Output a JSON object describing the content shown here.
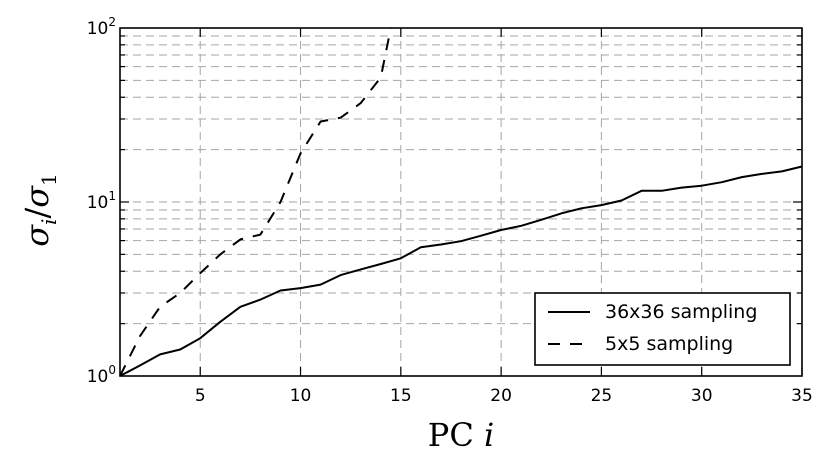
{
  "chart_data": {
    "type": "line",
    "xlabel": "PC i",
    "ylabel": "σi/σ1",
    "xlim": [
      1,
      35
    ],
    "ylim": [
      1,
      100
    ],
    "y_scale": "log",
    "grid": true,
    "legend_position": "bottom-right",
    "x_ticks": [
      5,
      10,
      15,
      20,
      25,
      30,
      35
    ],
    "y_ticks": [
      {
        "value": 1,
        "base": "10",
        "exp": "0"
      },
      {
        "value": 10,
        "base": "10",
        "exp": "1"
      },
      {
        "value": 100,
        "base": "10",
        "exp": "2"
      }
    ],
    "series": [
      {
        "name": "36x36 sampling",
        "style": "solid",
        "color": "#000000",
        "x": [
          1,
          2,
          3,
          4,
          5,
          6,
          7,
          8,
          9,
          10,
          11,
          12,
          13,
          14,
          15,
          16,
          17,
          18,
          19,
          20,
          21,
          22,
          23,
          24,
          25,
          26,
          27,
          28,
          29,
          30,
          31,
          32,
          33,
          34,
          35
        ],
        "y": [
          1.0,
          1.15,
          1.33,
          1.42,
          1.65,
          2.05,
          2.5,
          2.75,
          3.1,
          3.2,
          3.35,
          3.8,
          4.1,
          4.4,
          4.75,
          5.5,
          5.7,
          5.95,
          6.4,
          6.9,
          7.3,
          7.9,
          8.6,
          9.2,
          9.6,
          10.2,
          11.6,
          11.6,
          12.1,
          12.4,
          13.0,
          13.9,
          14.5,
          15.0,
          16.0
        ]
      },
      {
        "name": "5x5 sampling",
        "style": "dashed",
        "color": "#000000",
        "x": [
          1,
          2,
          3,
          4,
          5,
          6,
          7,
          8,
          9,
          10,
          11,
          12,
          13,
          14,
          14.5
        ],
        "y": [
          1.0,
          1.7,
          2.5,
          3.0,
          3.9,
          5.0,
          6.1,
          6.5,
          10.0,
          19.0,
          29.0,
          30.5,
          37.0,
          52.0,
          100.0
        ]
      }
    ]
  }
}
